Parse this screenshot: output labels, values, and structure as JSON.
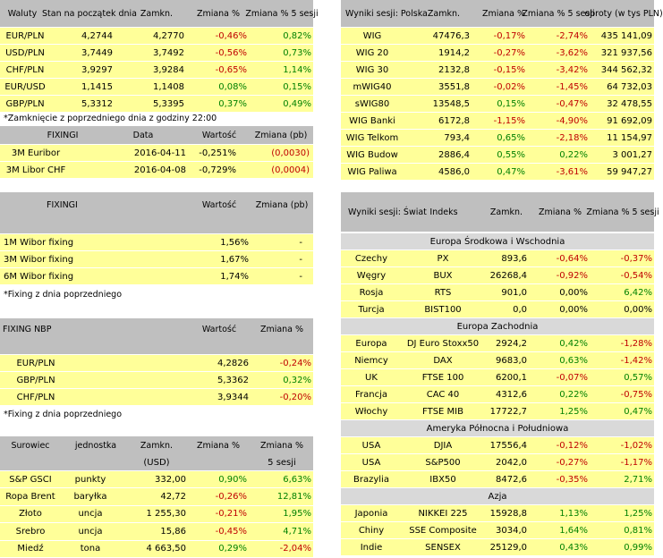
{
  "currencies": {
    "headers": [
      "Waluty",
      "Stan na początek dnia",
      "Zamkn.",
      "Zmiana %",
      "Zmiana % 5 sesji"
    ],
    "rows": [
      [
        "EUR/PLN",
        "4,2744",
        "4,2770",
        "-0,46%",
        "0,82%"
      ],
      [
        "USD/PLN",
        "3,7449",
        "3,7492",
        "-0,56%",
        "0,73%"
      ],
      [
        "CHF/PLN",
        "3,9297",
        "3,9284",
        "-0,65%",
        "1,14%"
      ],
      [
        "EUR/USD",
        "1,1415",
        "1,1408",
        "0,08%",
        "0,15%"
      ],
      [
        "GBP/PLN",
        "5,3312",
        "5,3395",
        "0,37%",
        "0,49%"
      ]
    ],
    "note": "*Zamknięcie z poprzedniego dnia z godziny 22:00"
  },
  "fixing_euribor": {
    "headers": [
      "FIXINGI",
      "Data",
      "Wartość",
      "Zmiana (pb)"
    ],
    "rows": [
      [
        "3M Euribor",
        "2016-04-11",
        "-0,251%",
        "(0,0030)"
      ],
      [
        "3M Libor CHF",
        "2016-04-08",
        "-0,729%",
        "(0,0004)"
      ]
    ]
  },
  "fixing_wibor": {
    "headers": [
      "FIXINGI",
      "Wartość",
      "Zmiana (pb)"
    ],
    "rows": [
      [
        "1M Wibor fixing",
        "1,56%",
        "-"
      ],
      [
        "3M Wibor fixing",
        "1,67%",
        "-"
      ],
      [
        "6M Wibor fixing",
        "1,74%",
        "-"
      ]
    ],
    "note": "*Fixing z dnia poprzedniego"
  },
  "fixing_nbp": {
    "headers": [
      "FIXING NBP",
      "Wartość",
      "Zmiana %"
    ],
    "rows": [
      [
        "EUR/PLN",
        "4,2826",
        "-0,24%"
      ],
      [
        "GBP/PLN",
        "5,3362",
        "0,32%"
      ],
      [
        "CHF/PLN",
        "3,9344",
        "-0,20%"
      ]
    ],
    "note": "*Fixing z dnia poprzedniego"
  },
  "commodities": {
    "headers": [
      "Surowiec",
      "jednostka",
      "Zamkn.",
      "Zmiana %",
      "Zmiana %"
    ],
    "subheaders": [
      "(USD)",
      "5 sesji"
    ],
    "rows": [
      [
        "S&P GSCI",
        "punkty",
        "332,00",
        "0,90%",
        "6,63%"
      ],
      [
        "Ropa Brent",
        "baryłka",
        "42,72",
        "-0,26%",
        "12,81%"
      ],
      [
        "Złoto",
        "uncja",
        "1 255,30",
        "-0,21%",
        "1,95%"
      ],
      [
        "Srebro",
        "uncja",
        "15,86",
        "-0,45%",
        "4,71%"
      ],
      [
        "Miedź",
        "tona",
        "4 663,50",
        "0,29%",
        "-2,04%"
      ]
    ]
  },
  "poland": {
    "headers": [
      "Wyniki sesji: Polska",
      "Zamkn.",
      "Zmiana %",
      "Zmiana % 5 sesji",
      "obroty (w tys PLN)"
    ],
    "rows": [
      [
        "WIG",
        "47476,3",
        "-0,17%",
        "-2,74%",
        "435 141,09"
      ],
      [
        "WIG 20",
        "1914,2",
        "-0,27%",
        "-3,62%",
        "321 937,56"
      ],
      [
        "WIG 30",
        "2132,8",
        "-0,15%",
        "-3,42%",
        "344 562,32"
      ],
      [
        "mWIG40",
        "3551,8",
        "-0,02%",
        "-1,45%",
        "64 732,03"
      ],
      [
        "sWIG80",
        "13548,5",
        "0,15%",
        "-0,47%",
        "32 478,55"
      ],
      [
        "WIG Banki",
        "6172,8",
        "-1,15%",
        "-4,90%",
        "91 692,09"
      ],
      [
        "WIG Telkom",
        "793,4",
        "0,65%",
        "-2,18%",
        "11 154,97"
      ],
      [
        "WIG Budow",
        "2886,4",
        "0,55%",
        "0,22%",
        "3 001,27"
      ],
      [
        "WIG Paliwa",
        "4586,0",
        "0,47%",
        "-3,61%",
        "59 947,27"
      ]
    ]
  },
  "world": {
    "headers": [
      "Wyniki sesji: Świat",
      "Indeks",
      "Zamkn.",
      "Zmiana %",
      "Zmiana % 5 sesji"
    ],
    "sections": [
      {
        "title": "Europa Środkowa i Wschodnia",
        "rows": [
          [
            "Czechy",
            "PX",
            "893,6",
            "-0,64%",
            "-0,37%"
          ],
          [
            "Węgry",
            "BUX",
            "26268,4",
            "-0,92%",
            "-0,54%"
          ],
          [
            "Rosja",
            "RTS",
            "901,0",
            "0,00%",
            "6,42%"
          ],
          [
            "Turcja",
            "BIST100",
            "0,0",
            "0,00%",
            "0,00%"
          ]
        ]
      },
      {
        "title": "Europa Zachodnia",
        "rows": [
          [
            "Europa",
            "DJ Euro Stoxx50",
            "2924,2",
            "0,42%",
            "-1,28%"
          ],
          [
            "Niemcy",
            "DAX",
            "9683,0",
            "0,63%",
            "-1,42%"
          ],
          [
            "UK",
            "FTSE 100",
            "6200,1",
            "-0,07%",
            "0,57%"
          ],
          [
            "Francja",
            "CAC 40",
            "4312,6",
            "0,22%",
            "-0,75%"
          ],
          [
            "Włochy",
            "FTSE MIB",
            "17722,7",
            "1,25%",
            "0,47%"
          ]
        ]
      },
      {
        "title": "Ameryka Północna i Południowa",
        "rows": [
          [
            "USA",
            "DJIA",
            "17556,4",
            "-0,12%",
            "-1,02%"
          ],
          [
            "USA",
            "S&P500",
            "2042,0",
            "-0,27%",
            "-1,17%"
          ],
          [
            "Brazylia",
            "IBX50",
            "8472,6",
            "-0,35%",
            "2,71%"
          ]
        ]
      },
      {
        "title": "Azja",
        "rows": [
          [
            "Japonia",
            "NIKKEI 225",
            "15928,8",
            "1,13%",
            "1,25%"
          ],
          [
            "Chiny",
            "SSE Composite",
            "3034,0",
            "1,64%",
            "0,81%"
          ],
          [
            "Indie",
            "SENSEX",
            "25129,0",
            "0,43%",
            "0,99%"
          ]
        ]
      }
    ]
  },
  "colors": {
    "header_bg": "#bfbfbf",
    "row_bg": "#ffff99",
    "positive": "#008000",
    "negative": "#c00000"
  }
}
